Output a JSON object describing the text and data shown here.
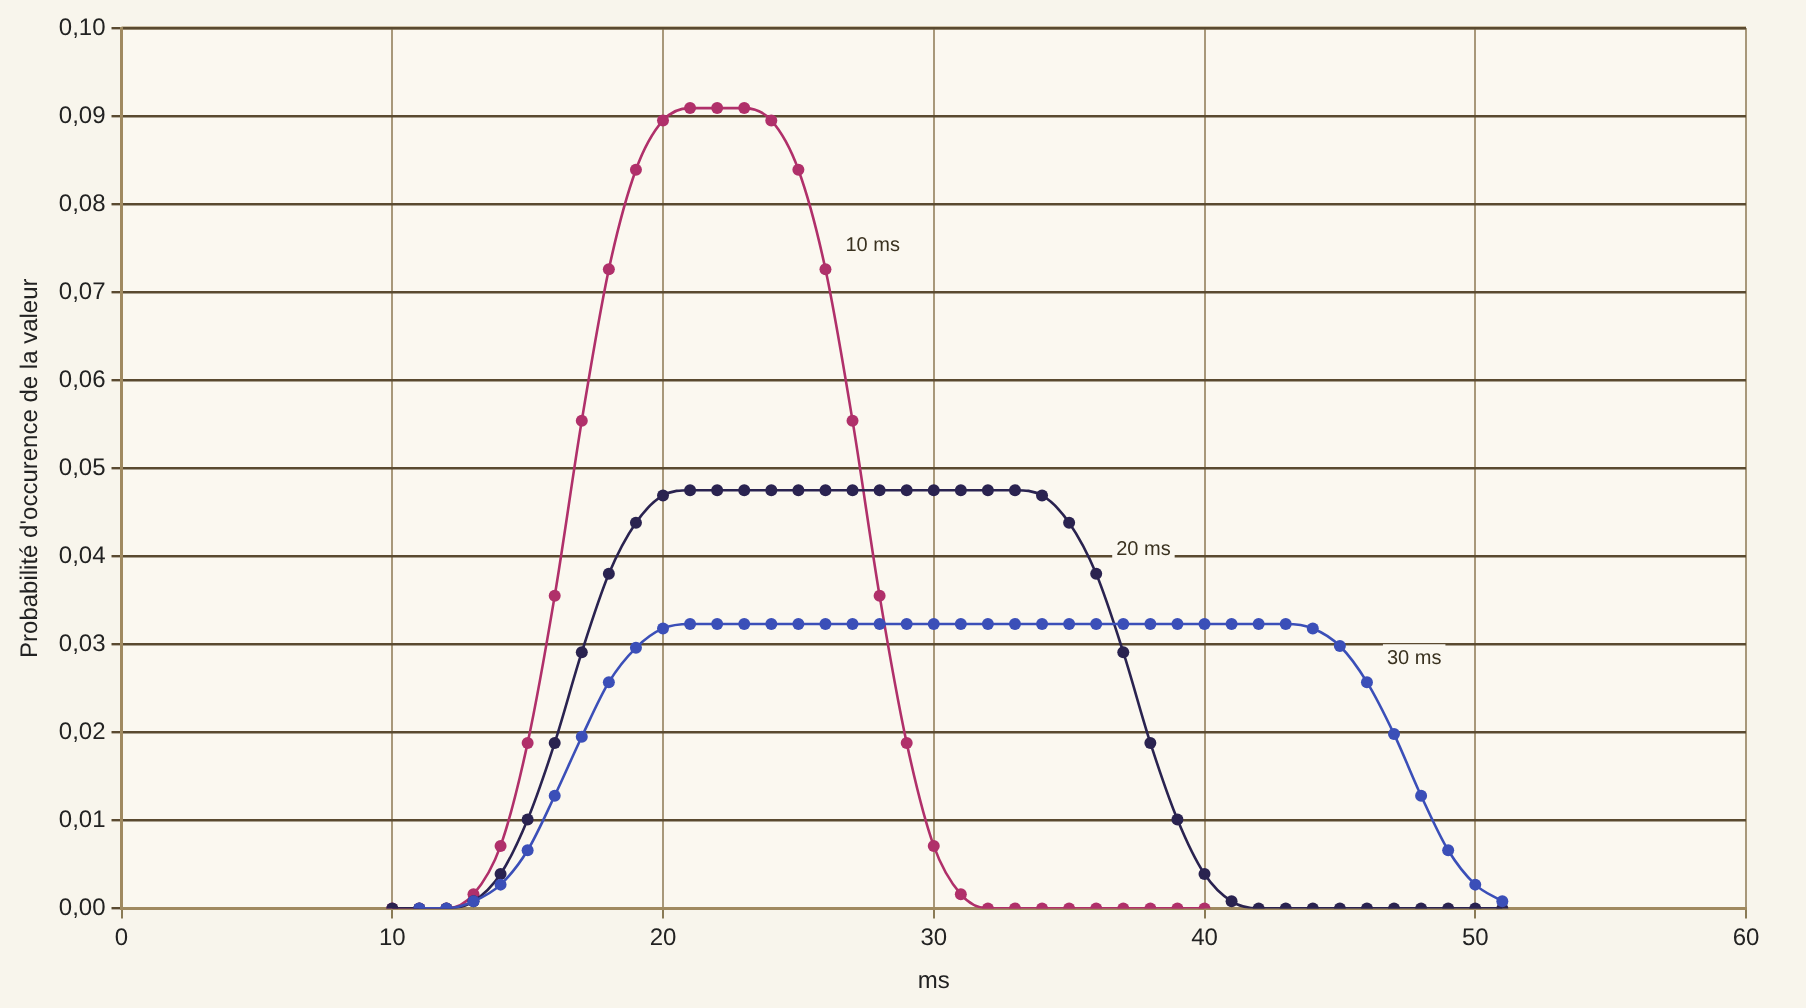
{
  "chart_data": {
    "type": "line",
    "xlabel": "ms",
    "ylabel": "Probabilité d'occurence de la valeur",
    "xlim": [
      0,
      60
    ],
    "xticks": [
      0,
      10,
      20,
      30,
      40,
      50,
      60
    ],
    "ylim": [
      0,
      0.1
    ],
    "yticks": [
      {
        "value": 0,
        "label": "0,00"
      },
      {
        "value": 0.01,
        "label": "0,01"
      },
      {
        "value": 0.02,
        "label": "0,02"
      },
      {
        "value": 0.03,
        "label": "0,03"
      },
      {
        "value": 0.04,
        "label": "0,04"
      },
      {
        "value": 0.05,
        "label": "0,05"
      },
      {
        "value": 0.06,
        "label": "0,06"
      },
      {
        "value": 0.07,
        "label": "0,07"
      },
      {
        "value": 0.08,
        "label": "0,08"
      },
      {
        "value": 0.09,
        "label": "0,09"
      },
      {
        "value": 0.1,
        "label": "0,10"
      }
    ],
    "grid": true,
    "marker": "circle",
    "legend": false,
    "series": [
      {
        "name": "10 ms",
        "color": "#b0306a",
        "x": [
          10,
          11,
          12,
          13,
          14,
          15,
          16,
          17,
          18,
          19,
          20,
          21,
          22,
          23,
          24,
          25,
          26,
          27,
          28,
          29,
          30,
          31,
          32,
          33,
          34,
          35,
          36,
          37,
          38,
          39,
          40
        ],
        "values": [
          0,
          0,
          0,
          0.0016,
          0.0071,
          0.0188,
          0.0355,
          0.0554,
          0.0726,
          0.0839,
          0.0895,
          0.0909,
          0.0909,
          0.0909,
          0.0895,
          0.0839,
          0.0726,
          0.0554,
          0.0355,
          0.0188,
          0.0071,
          0.0016,
          0,
          0,
          0,
          0,
          0,
          0,
          0,
          0,
          0
        ]
      },
      {
        "name": "20 ms",
        "color": "#2a2350",
        "x": [
          10,
          11,
          12,
          13,
          14,
          15,
          16,
          17,
          18,
          19,
          20,
          21,
          22,
          23,
          24,
          25,
          26,
          27,
          28,
          29,
          30,
          31,
          32,
          33,
          34,
          35,
          36,
          37,
          38,
          39,
          40,
          41,
          42,
          43,
          44,
          45,
          46,
          47,
          48,
          49,
          50,
          51
        ],
        "values": [
          0,
          0,
          0,
          0.0008,
          0.0039,
          0.0101,
          0.0188,
          0.0291,
          0.038,
          0.0438,
          0.0469,
          0.0475,
          0.0475,
          0.0475,
          0.0475,
          0.0475,
          0.0475,
          0.0475,
          0.0475,
          0.0475,
          0.0475,
          0.0475,
          0.0475,
          0.0475,
          0.0469,
          0.0438,
          0.038,
          0.0291,
          0.0188,
          0.0101,
          0.0039,
          0.0008,
          0,
          0,
          0,
          0,
          0,
          0,
          0,
          0,
          0,
          0
        ]
      },
      {
        "name": "30 ms",
        "color": "#3b4fb8",
        "x": [
          11,
          12,
          13,
          14,
          15,
          16,
          17,
          18,
          19,
          20,
          21,
          22,
          23,
          24,
          25,
          26,
          27,
          28,
          29,
          30,
          31,
          32,
          33,
          34,
          35,
          36,
          37,
          38,
          39,
          40,
          41,
          42,
          43,
          44,
          45,
          46,
          47,
          48,
          49,
          50,
          51
        ],
        "values": [
          0,
          0,
          0.0008,
          0.0027,
          0.0066,
          0.0128,
          0.0195,
          0.0257,
          0.0296,
          0.0318,
          0.0323,
          0.0323,
          0.0323,
          0.0323,
          0.0323,
          0.0323,
          0.0323,
          0.0323,
          0.0323,
          0.0323,
          0.0323,
          0.0323,
          0.0323,
          0.0323,
          0.0323,
          0.0323,
          0.0323,
          0.0323,
          0.0323,
          0.0323,
          0.0323,
          0.0323,
          0.0323,
          0.0318,
          0.0298,
          0.0257,
          0.0198,
          0.0128,
          0.0066,
          0.0027,
          0.0008
        ]
      }
    ]
  }
}
